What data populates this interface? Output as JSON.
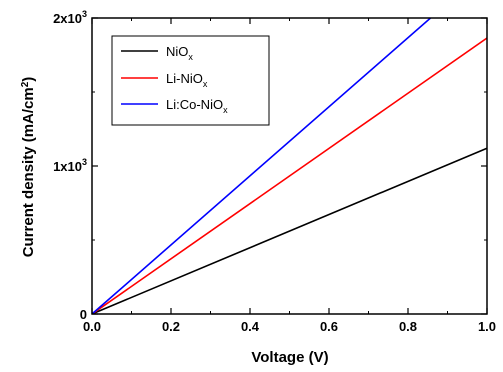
{
  "chart_data": {
    "type": "line",
    "xlabel": "Voltage (V)",
    "ylabel_main": "Current density (mA/cm",
    "ylabel_sup": "2",
    "ylabel_close": ")",
    "xlim": [
      0.0,
      1.0
    ],
    "ylim": [
      0,
      2000
    ],
    "x_ticks": [
      {
        "value": 0.0,
        "label": "0.0"
      },
      {
        "value": 0.2,
        "label": "0.2"
      },
      {
        "value": 0.4,
        "label": "0.4"
      },
      {
        "value": 0.6,
        "label": "0.6"
      },
      {
        "value": 0.8,
        "label": "0.8"
      },
      {
        "value": 1.0,
        "label": "1.0"
      }
    ],
    "y_ticks": [
      {
        "value": 0,
        "base": "0",
        "sup": ""
      },
      {
        "value": 1000,
        "base": "1x10",
        "sup": "3"
      },
      {
        "value": 2000,
        "base": "2x10",
        "sup": "3"
      }
    ],
    "legend_position": "top-left",
    "grid": false,
    "series": [
      {
        "name": "NiO",
        "name_sub": "x",
        "color": "#000000",
        "x": [
          0.0,
          1.0
        ],
        "y": [
          0,
          1120
        ]
      },
      {
        "name": "Li-NiO",
        "name_sub": "x",
        "color": "#ff0000",
        "x": [
          0.0,
          1.0
        ],
        "y": [
          0,
          1865
        ]
      },
      {
        "name": "Li:Co-NiO",
        "name_sub": "x",
        "color": "#0000ff",
        "x": [
          0.0,
          0.857
        ],
        "y": [
          0,
          2000
        ]
      }
    ]
  }
}
